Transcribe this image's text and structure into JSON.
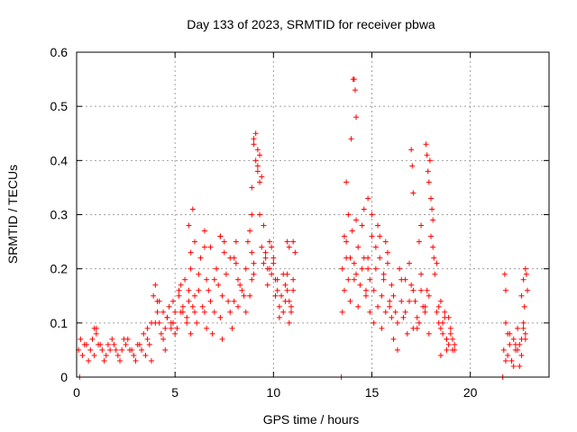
{
  "chart_data": {
    "type": "scatter",
    "title": "Day 133 of 2023, SRMTID for receiver pbwa",
    "xlabel": "GPS time / hours",
    "ylabel": "SRMTID / TECUs",
    "xlim": [
      0,
      24
    ],
    "ylim": [
      0,
      0.6
    ],
    "xticks": [
      0,
      5,
      10,
      15,
      20
    ],
    "xtick_labels": [
      "0",
      "5",
      "10",
      "15",
      "20"
    ],
    "yticks": [
      0,
      0.1,
      0.2,
      0.3,
      0.4,
      0.5,
      0.6
    ],
    "ytick_labels": [
      "0",
      "0.1",
      "0.2",
      "0.3",
      "0.4",
      "0.5",
      "0.6"
    ],
    "grid": true,
    "marker": "+",
    "color": "#ff0000",
    "series": [
      {
        "name": "SRMTID",
        "x": [
          0.1,
          0.3,
          0.5,
          0.7,
          0.9,
          1.1,
          1.3,
          1.5,
          1.7,
          1.9,
          2.1,
          2.3,
          2.5,
          2.7,
          2.9,
          3.1,
          3.3,
          3.5,
          3.7,
          0.2,
          0.6,
          1.0,
          1.4,
          1.8,
          2.2,
          2.6,
          3.0,
          3.4,
          3.8,
          0.4,
          0.8,
          1.2,
          1.6,
          2.0,
          2.4,
          2.8,
          3.2,
          3.6,
          0.9,
          1.0,
          3.6,
          3.8,
          3.9,
          4.0,
          4.1,
          4.2,
          4.3,
          4.4,
          4.5,
          4.6,
          4.7,
          4.8,
          4.9,
          5.0,
          5.1,
          5.2,
          5.3,
          5.4,
          5.5,
          5.6,
          5.7,
          5.8,
          5.9,
          6.0,
          4.0,
          4.2,
          4.4,
          4.6,
          4.8,
          5.0,
          5.2,
          5.4,
          5.6,
          5.8,
          6.0,
          4.1,
          4.5,
          4.9,
          5.3,
          5.7,
          5.8,
          5.9,
          5.7,
          6.0,
          6.2,
          6.4,
          6.6,
          6.8,
          7.0,
          7.2,
          7.4,
          7.6,
          7.8,
          8.0,
          8.2,
          8.4,
          8.6,
          8.8,
          9.0,
          6.1,
          6.3,
          6.5,
          6.7,
          6.9,
          7.1,
          7.3,
          7.5,
          7.7,
          7.9,
          8.1,
          8.3,
          8.5,
          8.7,
          8.9,
          6.2,
          6.6,
          7.0,
          7.4,
          7.8,
          8.2,
          8.6,
          9.0,
          6.5,
          7.3,
          8.1,
          8.9,
          6.5,
          6.8,
          7.3,
          7.5,
          8.0,
          8.8,
          8.9,
          9.0,
          9.1,
          9.2,
          9.3,
          9.4,
          8.9,
          9.0,
          9.1,
          9.2,
          9.3,
          9.2,
          9.3,
          9.4,
          9.5,
          9.6,
          9.7,
          9.8,
          9.9,
          10.0,
          10.1,
          10.2,
          10.3,
          10.4,
          10.5,
          10.6,
          10.7,
          10.8,
          10.9,
          11.0,
          9.5,
          9.7,
          9.9,
          10.1,
          10.3,
          10.5,
          10.7,
          10.9,
          9.6,
          9.8,
          10.0,
          10.2,
          10.6,
          10.8,
          11.0,
          10.7,
          10.8,
          11.0,
          11.1,
          13.5,
          13.6,
          13.7,
          13.8,
          13.9,
          14.0,
          14.1,
          14.2,
          14.3,
          14.4,
          14.5,
          14.6,
          14.7,
          14.8,
          14.9,
          15.0,
          13.5,
          13.7,
          13.9,
          14.1,
          14.3,
          14.5,
          14.7,
          14.9,
          13.6,
          13.8,
          14.2,
          14.6,
          14.8,
          14.05,
          14.1,
          14.15,
          14.2,
          13.95,
          13.7,
          15.1,
          15.2,
          15.3,
          15.4,
          15.5,
          15.6,
          15.7,
          15.8,
          15.9,
          16.0,
          15.2,
          15.4,
          15.6,
          15.8,
          16.0,
          15.1,
          15.5,
          15.9,
          15.3,
          15.7,
          15.0,
          14.8,
          16.1,
          16.3,
          16.5,
          16.7,
          16.9,
          17.1,
          17.3,
          17.5,
          17.7,
          17.9,
          16.2,
          16.4,
          16.6,
          16.8,
          17.0,
          17.2,
          17.4,
          17.6,
          17.8,
          16.1,
          16.5,
          16.9,
          17.3,
          17.7,
          16.3,
          16.7,
          17.1,
          17.5,
          17.9,
          17.0,
          17.05,
          17.1,
          17.5,
          17.4,
          17.75,
          17.8,
          17.85,
          17.9,
          17.95,
          18.0,
          18.05,
          18.0,
          18.1,
          18.15,
          18.2,
          18.3,
          18.1,
          18.3,
          18.4,
          18.5,
          18.6,
          18.7,
          18.8,
          18.9,
          19.0,
          19.1,
          19.2,
          18.4,
          18.6,
          18.8,
          19.0,
          19.2,
          18.5,
          18.7,
          18.9,
          19.1,
          18.5,
          18.8,
          21.7,
          21.8,
          21.9,
          22.0,
          22.1,
          22.2,
          22.3,
          22.4,
          22.5,
          22.6,
          22.7,
          22.8,
          21.8,
          22.0,
          22.2,
          22.4,
          22.6,
          22.8,
          21.9,
          22.1,
          22.3,
          22.5,
          22.7,
          21.75,
          21.8,
          22.6,
          22.7,
          22.8,
          22.85,
          22.9,
          22.75,
          0.15,
          13.45,
          21.65
        ],
        "y": [
          0.05,
          0.04,
          0.06,
          0.05,
          0.04,
          0.06,
          0.05,
          0.04,
          0.05,
          0.06,
          0.04,
          0.05,
          0.06,
          0.05,
          0.04,
          0.06,
          0.05,
          0.04,
          0.06,
          0.07,
          0.03,
          0.08,
          0.03,
          0.07,
          0.03,
          0.07,
          0.03,
          0.08,
          0.03,
          0.06,
          0.07,
          0.06,
          0.06,
          0.05,
          0.07,
          0.05,
          0.06,
          0.07,
          0.09,
          0.09,
          0.09,
          0.1,
          0.15,
          0.17,
          0.12,
          0.1,
          0.08,
          0.12,
          0.09,
          0.11,
          0.13,
          0.1,
          0.14,
          0.12,
          0.09,
          0.15,
          0.17,
          0.12,
          0.18,
          0.1,
          0.14,
          0.2,
          0.13,
          0.15,
          0.1,
          0.14,
          0.07,
          0.11,
          0.09,
          0.08,
          0.16,
          0.13,
          0.11,
          0.08,
          0.12,
          0.14,
          0.05,
          0.1,
          0.12,
          0.16,
          0.23,
          0.31,
          0.28,
          0.25,
          0.16,
          0.13,
          0.18,
          0.14,
          0.12,
          0.17,
          0.15,
          0.19,
          0.12,
          0.14,
          0.18,
          0.16,
          0.2,
          0.15,
          0.19,
          0.1,
          0.22,
          0.12,
          0.16,
          0.08,
          0.2,
          0.11,
          0.23,
          0.14,
          0.09,
          0.21,
          0.17,
          0.15,
          0.25,
          0.18,
          0.19,
          0.09,
          0.18,
          0.07,
          0.22,
          0.13,
          0.12,
          0.21,
          0.24,
          0.26,
          0.25,
          0.23,
          0.27,
          0.24,
          0.26,
          0.25,
          0.22,
          0.27,
          0.35,
          0.44,
          0.4,
          0.38,
          0.3,
          0.24,
          0.3,
          0.43,
          0.45,
          0.42,
          0.36,
          0.39,
          0.41,
          0.37,
          0.28,
          0.22,
          0.2,
          0.25,
          0.19,
          0.21,
          0.18,
          0.16,
          0.13,
          0.15,
          0.12,
          0.17,
          0.19,
          0.14,
          0.12,
          0.16,
          0.21,
          0.17,
          0.24,
          0.15,
          0.11,
          0.19,
          0.16,
          0.13,
          0.23,
          0.2,
          0.22,
          0.18,
          0.14,
          0.1,
          0.18,
          0.25,
          0.24,
          0.25,
          0.23,
          0.2,
          0.16,
          0.25,
          0.18,
          0.22,
          0.27,
          0.21,
          0.19,
          0.24,
          0.17,
          0.28,
          0.22,
          0.16,
          0.2,
          0.18,
          0.26,
          0.12,
          0.22,
          0.14,
          0.18,
          0.13,
          0.2,
          0.15,
          0.12,
          0.26,
          0.3,
          0.29,
          0.31,
          0.22,
          0.55,
          0.55,
          0.53,
          0.48,
          0.44,
          0.36,
          0.16,
          0.2,
          0.13,
          0.22,
          0.15,
          0.18,
          0.12,
          0.21,
          0.14,
          0.17,
          0.24,
          0.26,
          0.19,
          0.23,
          0.11,
          0.1,
          0.09,
          0.13,
          0.28,
          0.25,
          0.3,
          0.33,
          0.15,
          0.1,
          0.18,
          0.12,
          0.14,
          0.16,
          0.11,
          0.19,
          0.13,
          0.15,
          0.12,
          0.2,
          0.11,
          0.08,
          0.17,
          0.14,
          0.1,
          0.13,
          0.16,
          0.07,
          0.14,
          0.21,
          0.09,
          0.12,
          0.05,
          0.18,
          0.09,
          0.16,
          0.08,
          0.42,
          0.39,
          0.34,
          0.28,
          0.25,
          0.43,
          0.41,
          0.38,
          0.36,
          0.4,
          0.33,
          0.31,
          0.26,
          0.29,
          0.22,
          0.19,
          0.21,
          0.24,
          0.12,
          0.1,
          0.09,
          0.08,
          0.11,
          0.07,
          0.06,
          0.08,
          0.05,
          0.06,
          0.13,
          0.1,
          0.07,
          0.09,
          0.05,
          0.14,
          0.12,
          0.11,
          0.07,
          0.04,
          0.05,
          0.05,
          0.1,
          0.04,
          0.08,
          0.03,
          0.07,
          0.05,
          0.09,
          0.06,
          0.04,
          0.1,
          0.07,
          0.03,
          0.06,
          0.02,
          0.05,
          0.07,
          0.08,
          0.08,
          0.03,
          0.06,
          0.02,
          0.09,
          0.19,
          0.16,
          0.15,
          0.18,
          0.2,
          0.19,
          0.16,
          0.13,
          0.0,
          0.0,
          0.0
        ]
      }
    ]
  }
}
